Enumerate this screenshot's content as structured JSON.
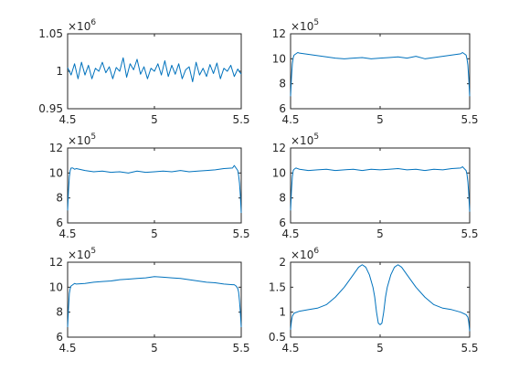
{
  "chart_data": [
    {
      "type": "line",
      "xlim": [
        4.5,
        5.5
      ],
      "ylim": [
        0.95,
        1.05
      ],
      "xticks": [
        "4.5",
        "5",
        "5.5"
      ],
      "yticks": [
        "0.95",
        "1",
        "1.05"
      ],
      "y_multiplier": {
        "base": "×10",
        "exponent": "6"
      },
      "grid": false,
      "x": [
        4.5,
        4.52,
        4.54,
        4.56,
        4.58,
        4.6,
        4.62,
        4.64,
        4.66,
        4.68,
        4.7,
        4.72,
        4.74,
        4.76,
        4.78,
        4.8,
        4.82,
        4.84,
        4.86,
        4.88,
        4.9,
        4.92,
        4.94,
        4.96,
        4.98,
        5.0,
        5.02,
        5.04,
        5.06,
        5.08,
        5.1,
        5.12,
        5.14,
        5.16,
        5.18,
        5.2,
        5.22,
        5.24,
        5.26,
        5.28,
        5.3,
        5.32,
        5.34,
        5.36,
        5.38,
        5.4,
        5.42,
        5.44,
        5.46,
        5.48,
        5.5
      ],
      "y": [
        1.005,
        0.995,
        1.01,
        0.99,
        1.012,
        0.995,
        1.008,
        0.99,
        1.004,
        1.0,
        1.012,
        0.998,
        1.006,
        0.99,
        1.005,
        1.0,
        1.018,
        0.992,
        1.01,
        1.002,
        1.016,
        0.996,
        1.006,
        0.99,
        1.004,
        1.0,
        1.01,
        0.995,
        1.014,
        0.993,
        1.008,
        0.996,
        1.01,
        0.99,
        1.002,
        1.006,
        0.986,
        1.012,
        0.995,
        1.004,
        0.993,
        1.009,
        0.997,
        1.011,
        0.99,
        1.004,
        1.0,
        1.008,
        0.993,
        1.003,
        0.996
      ]
    },
    {
      "type": "line",
      "xlim": [
        4.5,
        5.5
      ],
      "ylim": [
        6,
        12
      ],
      "xticks": [
        "4.5",
        "5",
        "5.5"
      ],
      "yticks": [
        "6",
        "8",
        "10",
        "12"
      ],
      "y_multiplier": {
        "base": "×10",
        "exponent": "5"
      },
      "grid": false,
      "x": [
        4.5,
        4.505,
        4.51,
        4.515,
        4.52,
        4.53,
        4.54,
        4.55,
        4.6,
        4.65,
        4.7,
        4.75,
        4.8,
        4.85,
        4.9,
        4.95,
        5.0,
        5.05,
        5.1,
        5.15,
        5.2,
        5.25,
        5.3,
        5.35,
        5.4,
        5.45,
        5.46,
        5.47,
        5.48,
        5.485,
        5.49,
        5.495,
        5.5
      ],
      "y": [
        7.0,
        8.5,
        9.6,
        10.1,
        10.3,
        10.4,
        10.5,
        10.45,
        10.35,
        10.25,
        10.15,
        10.05,
        10.0,
        10.05,
        10.1,
        10.0,
        10.05,
        10.1,
        10.15,
        10.05,
        10.2,
        10.0,
        10.1,
        10.2,
        10.3,
        10.4,
        10.5,
        10.4,
        10.3,
        10.0,
        9.5,
        8.4,
        7.0
      ]
    },
    {
      "type": "line",
      "xlim": [
        4.5,
        5.5
      ],
      "ylim": [
        6,
        12
      ],
      "xticks": [
        "4.5",
        "5",
        "5.5"
      ],
      "yticks": [
        "6",
        "8",
        "10",
        "12"
      ],
      "y_multiplier": {
        "base": "×10",
        "exponent": "5"
      },
      "grid": false,
      "x": [
        4.5,
        4.505,
        4.51,
        4.515,
        4.52,
        4.53,
        4.54,
        4.55,
        4.6,
        4.65,
        4.7,
        4.75,
        4.8,
        4.85,
        4.9,
        4.95,
        5.0,
        5.05,
        5.1,
        5.15,
        5.2,
        5.25,
        5.3,
        5.35,
        5.4,
        5.45,
        5.46,
        5.47,
        5.48,
        5.485,
        5.49,
        5.495,
        5.5
      ],
      "y": [
        7.0,
        8.6,
        9.7,
        10.2,
        10.4,
        10.4,
        10.3,
        10.35,
        10.2,
        10.1,
        10.15,
        10.05,
        10.1,
        10.0,
        10.15,
        10.05,
        10.1,
        10.15,
        10.1,
        10.2,
        10.1,
        10.15,
        10.2,
        10.25,
        10.35,
        10.4,
        10.6,
        10.4,
        10.2,
        9.8,
        9.2,
        8.2,
        6.8
      ]
    },
    {
      "type": "line",
      "xlim": [
        4.5,
        5.5
      ],
      "ylim": [
        6,
        12
      ],
      "xticks": [
        "4.5",
        "5",
        "5.5"
      ],
      "yticks": [
        "6",
        "8",
        "10",
        "12"
      ],
      "y_multiplier": {
        "base": "×10",
        "exponent": "5"
      },
      "grid": false,
      "x": [
        4.5,
        4.505,
        4.51,
        4.515,
        4.52,
        4.53,
        4.54,
        4.55,
        4.6,
        4.65,
        4.7,
        4.75,
        4.8,
        4.85,
        4.9,
        4.95,
        5.0,
        5.05,
        5.1,
        5.15,
        5.2,
        5.25,
        5.3,
        5.35,
        5.4,
        5.45,
        5.46,
        5.47,
        5.48,
        5.485,
        5.49,
        5.495,
        5.5
      ],
      "y": [
        7.0,
        8.6,
        9.7,
        10.2,
        10.3,
        10.4,
        10.35,
        10.3,
        10.2,
        10.25,
        10.3,
        10.2,
        10.25,
        10.3,
        10.2,
        10.3,
        10.25,
        10.3,
        10.35,
        10.25,
        10.3,
        10.2,
        10.3,
        10.25,
        10.35,
        10.4,
        10.5,
        10.35,
        10.2,
        9.9,
        9.3,
        8.3,
        6.9
      ]
    },
    {
      "type": "line",
      "xlim": [
        4.5,
        5.5
      ],
      "ylim": [
        6,
        12
      ],
      "xticks": [
        "4.5",
        "5",
        "5.5"
      ],
      "yticks": [
        "6",
        "8",
        "10",
        "12"
      ],
      "y_multiplier": {
        "base": "×10",
        "exponent": "5"
      },
      "grid": false,
      "x": [
        4.5,
        4.505,
        4.51,
        4.515,
        4.52,
        4.53,
        4.54,
        4.55,
        4.6,
        4.65,
        4.7,
        4.75,
        4.8,
        4.85,
        4.9,
        4.95,
        5.0,
        5.05,
        5.1,
        5.15,
        5.2,
        5.25,
        5.3,
        5.35,
        5.4,
        5.45,
        5.46,
        5.47,
        5.48,
        5.485,
        5.49,
        5.495,
        5.5
      ],
      "y": [
        6.8,
        8.3,
        9.5,
        9.9,
        10.1,
        10.2,
        10.3,
        10.25,
        10.3,
        10.4,
        10.45,
        10.5,
        10.6,
        10.65,
        10.7,
        10.75,
        10.85,
        10.8,
        10.75,
        10.7,
        10.6,
        10.5,
        10.4,
        10.35,
        10.25,
        10.2,
        10.2,
        10.1,
        9.9,
        9.6,
        8.9,
        8.0,
        6.8
      ]
    },
    {
      "type": "line",
      "xlim": [
        4.5,
        5.5
      ],
      "ylim": [
        0.5,
        2
      ],
      "xticks": [
        "4.5",
        "5",
        "5.5"
      ],
      "yticks": [
        "0.5",
        "1",
        "1.5",
        "2"
      ],
      "y_multiplier": {
        "base": "×10",
        "exponent": "6"
      },
      "grid": false,
      "x": [
        4.5,
        4.505,
        4.51,
        4.52,
        4.55,
        4.6,
        4.65,
        4.7,
        4.75,
        4.8,
        4.85,
        4.88,
        4.9,
        4.92,
        4.94,
        4.96,
        4.97,
        4.98,
        4.99,
        5.0,
        5.01,
        5.02,
        5.03,
        5.04,
        5.06,
        5.08,
        5.1,
        5.12,
        5.15,
        5.2,
        5.25,
        5.3,
        5.35,
        5.4,
        5.45,
        5.48,
        5.49,
        5.495,
        5.5
      ],
      "y": [
        0.65,
        0.82,
        0.92,
        0.98,
        1.02,
        1.05,
        1.08,
        1.15,
        1.3,
        1.5,
        1.75,
        1.9,
        1.95,
        1.9,
        1.75,
        1.5,
        1.3,
        1.0,
        0.78,
        0.75,
        0.78,
        1.0,
        1.3,
        1.5,
        1.75,
        1.9,
        1.95,
        1.9,
        1.75,
        1.5,
        1.3,
        1.15,
        1.08,
        1.05,
        1.0,
        0.95,
        0.9,
        0.8,
        0.62
      ]
    }
  ]
}
